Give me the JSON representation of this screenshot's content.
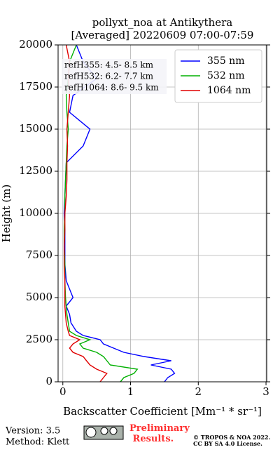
{
  "chart_data": {
    "type": "profile",
    "title": "pollyxt_noa at Antikythera",
    "subtitle": "[Averaged] 20220609 07:00-07:59",
    "x_label": "Backscatter Coefficient [Mm⁻¹ * sr⁻¹]",
    "y_label": "Height (m)",
    "heights": [
      0,
      250,
      500,
      750,
      1000,
      1250,
      1500,
      1750,
      2000,
      2250,
      2500,
      2750,
      3000,
      3500,
      4000,
      4500,
      5000,
      6000,
      7000,
      8000,
      9000,
      10000,
      11000,
      12000,
      13000,
      14000,
      15000,
      16000,
      17000,
      18000,
      19000,
      20000
    ],
    "series": [
      {
        "name": "355 nm",
        "color": "#0000ff",
        "values": [
          1.5,
          1.55,
          1.65,
          1.6,
          1.3,
          1.6,
          1.2,
          0.9,
          0.75,
          0.6,
          0.55,
          0.3,
          0.2,
          0.12,
          0.1,
          0.05,
          0.15,
          0.05,
          0.03,
          0.03,
          0.03,
          0.02,
          0.03,
          0.04,
          0.05,
          0.3,
          0.4,
          0.1,
          0.15,
          0.5,
          0.3,
          0.2
        ]
      },
      {
        "name": "532 nm",
        "color": "#00b000",
        "values": [
          0.85,
          0.9,
          1.05,
          1.1,
          0.7,
          0.65,
          0.6,
          0.5,
          0.3,
          0.25,
          0.4,
          0.2,
          0.1,
          0.08,
          0.06,
          0.05,
          0.04,
          0.03,
          0.03,
          0.02,
          0.02,
          0.03,
          0.03,
          0.04,
          0.05,
          0.06,
          0.08,
          0.06,
          0.05,
          0.08,
          0.1,
          0.2
        ]
      },
      {
        "name": "1064 nm",
        "color": "#e00000",
        "values": [
          0.55,
          0.6,
          0.65,
          0.5,
          0.4,
          0.35,
          0.3,
          0.15,
          0.1,
          0.15,
          0.25,
          0.1,
          0.08,
          0.05,
          0.04,
          0.03,
          0.03,
          0.03,
          0.02,
          0.02,
          0.03,
          0.03,
          0.05,
          0.06,
          0.06,
          0.07,
          0.06,
          0.08,
          0.1,
          0.08,
          0.1,
          0.05
        ]
      }
    ],
    "annotations": [
      "refH355:  4.5- 8.5 km",
      "refH532:  6.2- 7.7 km",
      "refH1064:  8.6- 9.5 km"
    ],
    "xlim": [
      -0.07,
      3.01
    ],
    "xticks": [
      0,
      1,
      2,
      3
    ],
    "ylim": [
      0,
      20000
    ],
    "yticks": [
      0,
      2500,
      5000,
      7500,
      10000,
      12500,
      15000,
      17500,
      20000
    ],
    "grid": true,
    "legend": "upper right"
  },
  "footer": {
    "version": "Version: 3.5",
    "method": "Method: Klett",
    "status": "Preliminary Results.",
    "copyright": "© TROPOS & NOA 2022.",
    "license": "CC BY SA 4.0 License."
  }
}
